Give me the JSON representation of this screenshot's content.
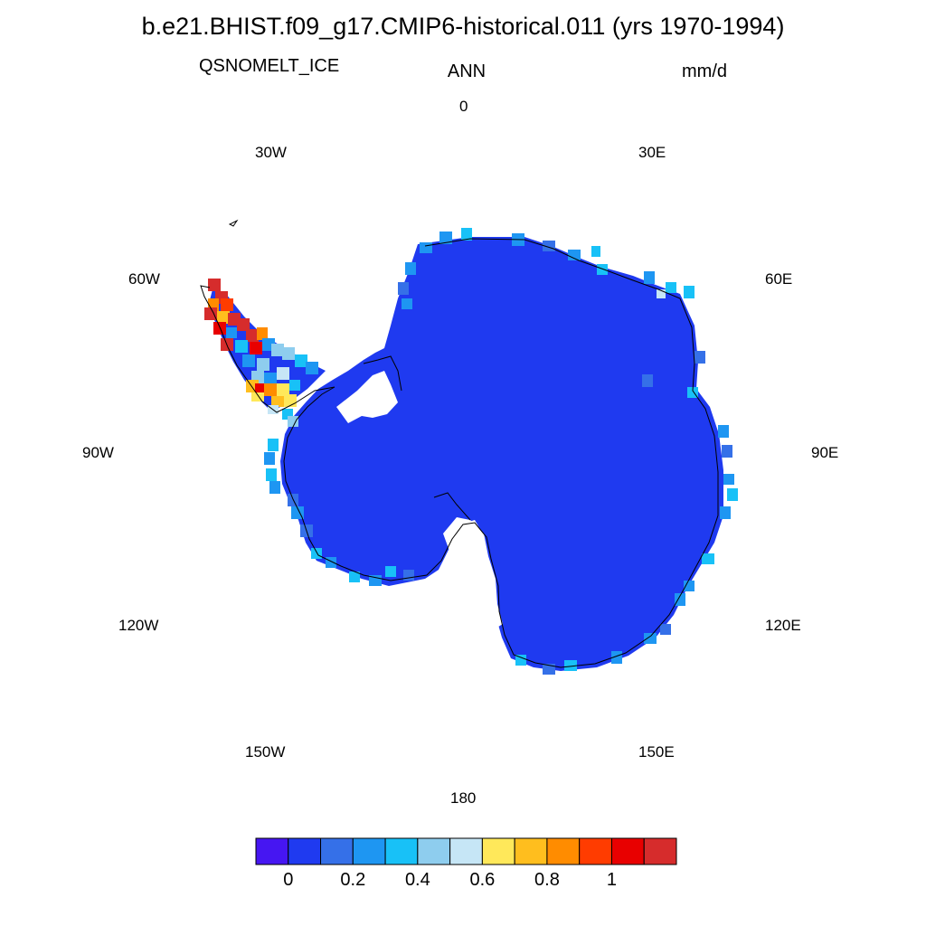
{
  "title": "b.e21.BHIST.f09_g17.CMIP6-historical.011 (yrs 1970-1994)",
  "variable": "QSNOMELT_ICE",
  "season": "ANN",
  "units": "mm/d",
  "longitude_labels": {
    "lon_0": "0",
    "lon_30e": "30E",
    "lon_60e": "60E",
    "lon_90e": "90E",
    "lon_120e": "120E",
    "lon_150e": "150E",
    "lon_180": "180",
    "lon_150w": "150W",
    "lon_120w": "120W",
    "lon_90w": "90W",
    "lon_60w": "60W",
    "lon_30w": "30W"
  },
  "colorbar": {
    "colors": [
      "#4616f2",
      "#1f3af0",
      "#3570e8",
      "#1e96f2",
      "#18c1f7",
      "#8ecdee",
      "#c6e6f6",
      "#ffe85a",
      "#ffbe1e",
      "#ff8c00",
      "#ff3c00",
      "#e80000",
      "#d62c2c"
    ],
    "tick_labels": [
      "0",
      "0.2",
      "0.4",
      "0.6",
      "0.8",
      "1"
    ]
  },
  "map": {
    "continent_fill": "#1f3af0",
    "coastline_color": "#000000",
    "projection": "south-polar-stereographic"
  }
}
